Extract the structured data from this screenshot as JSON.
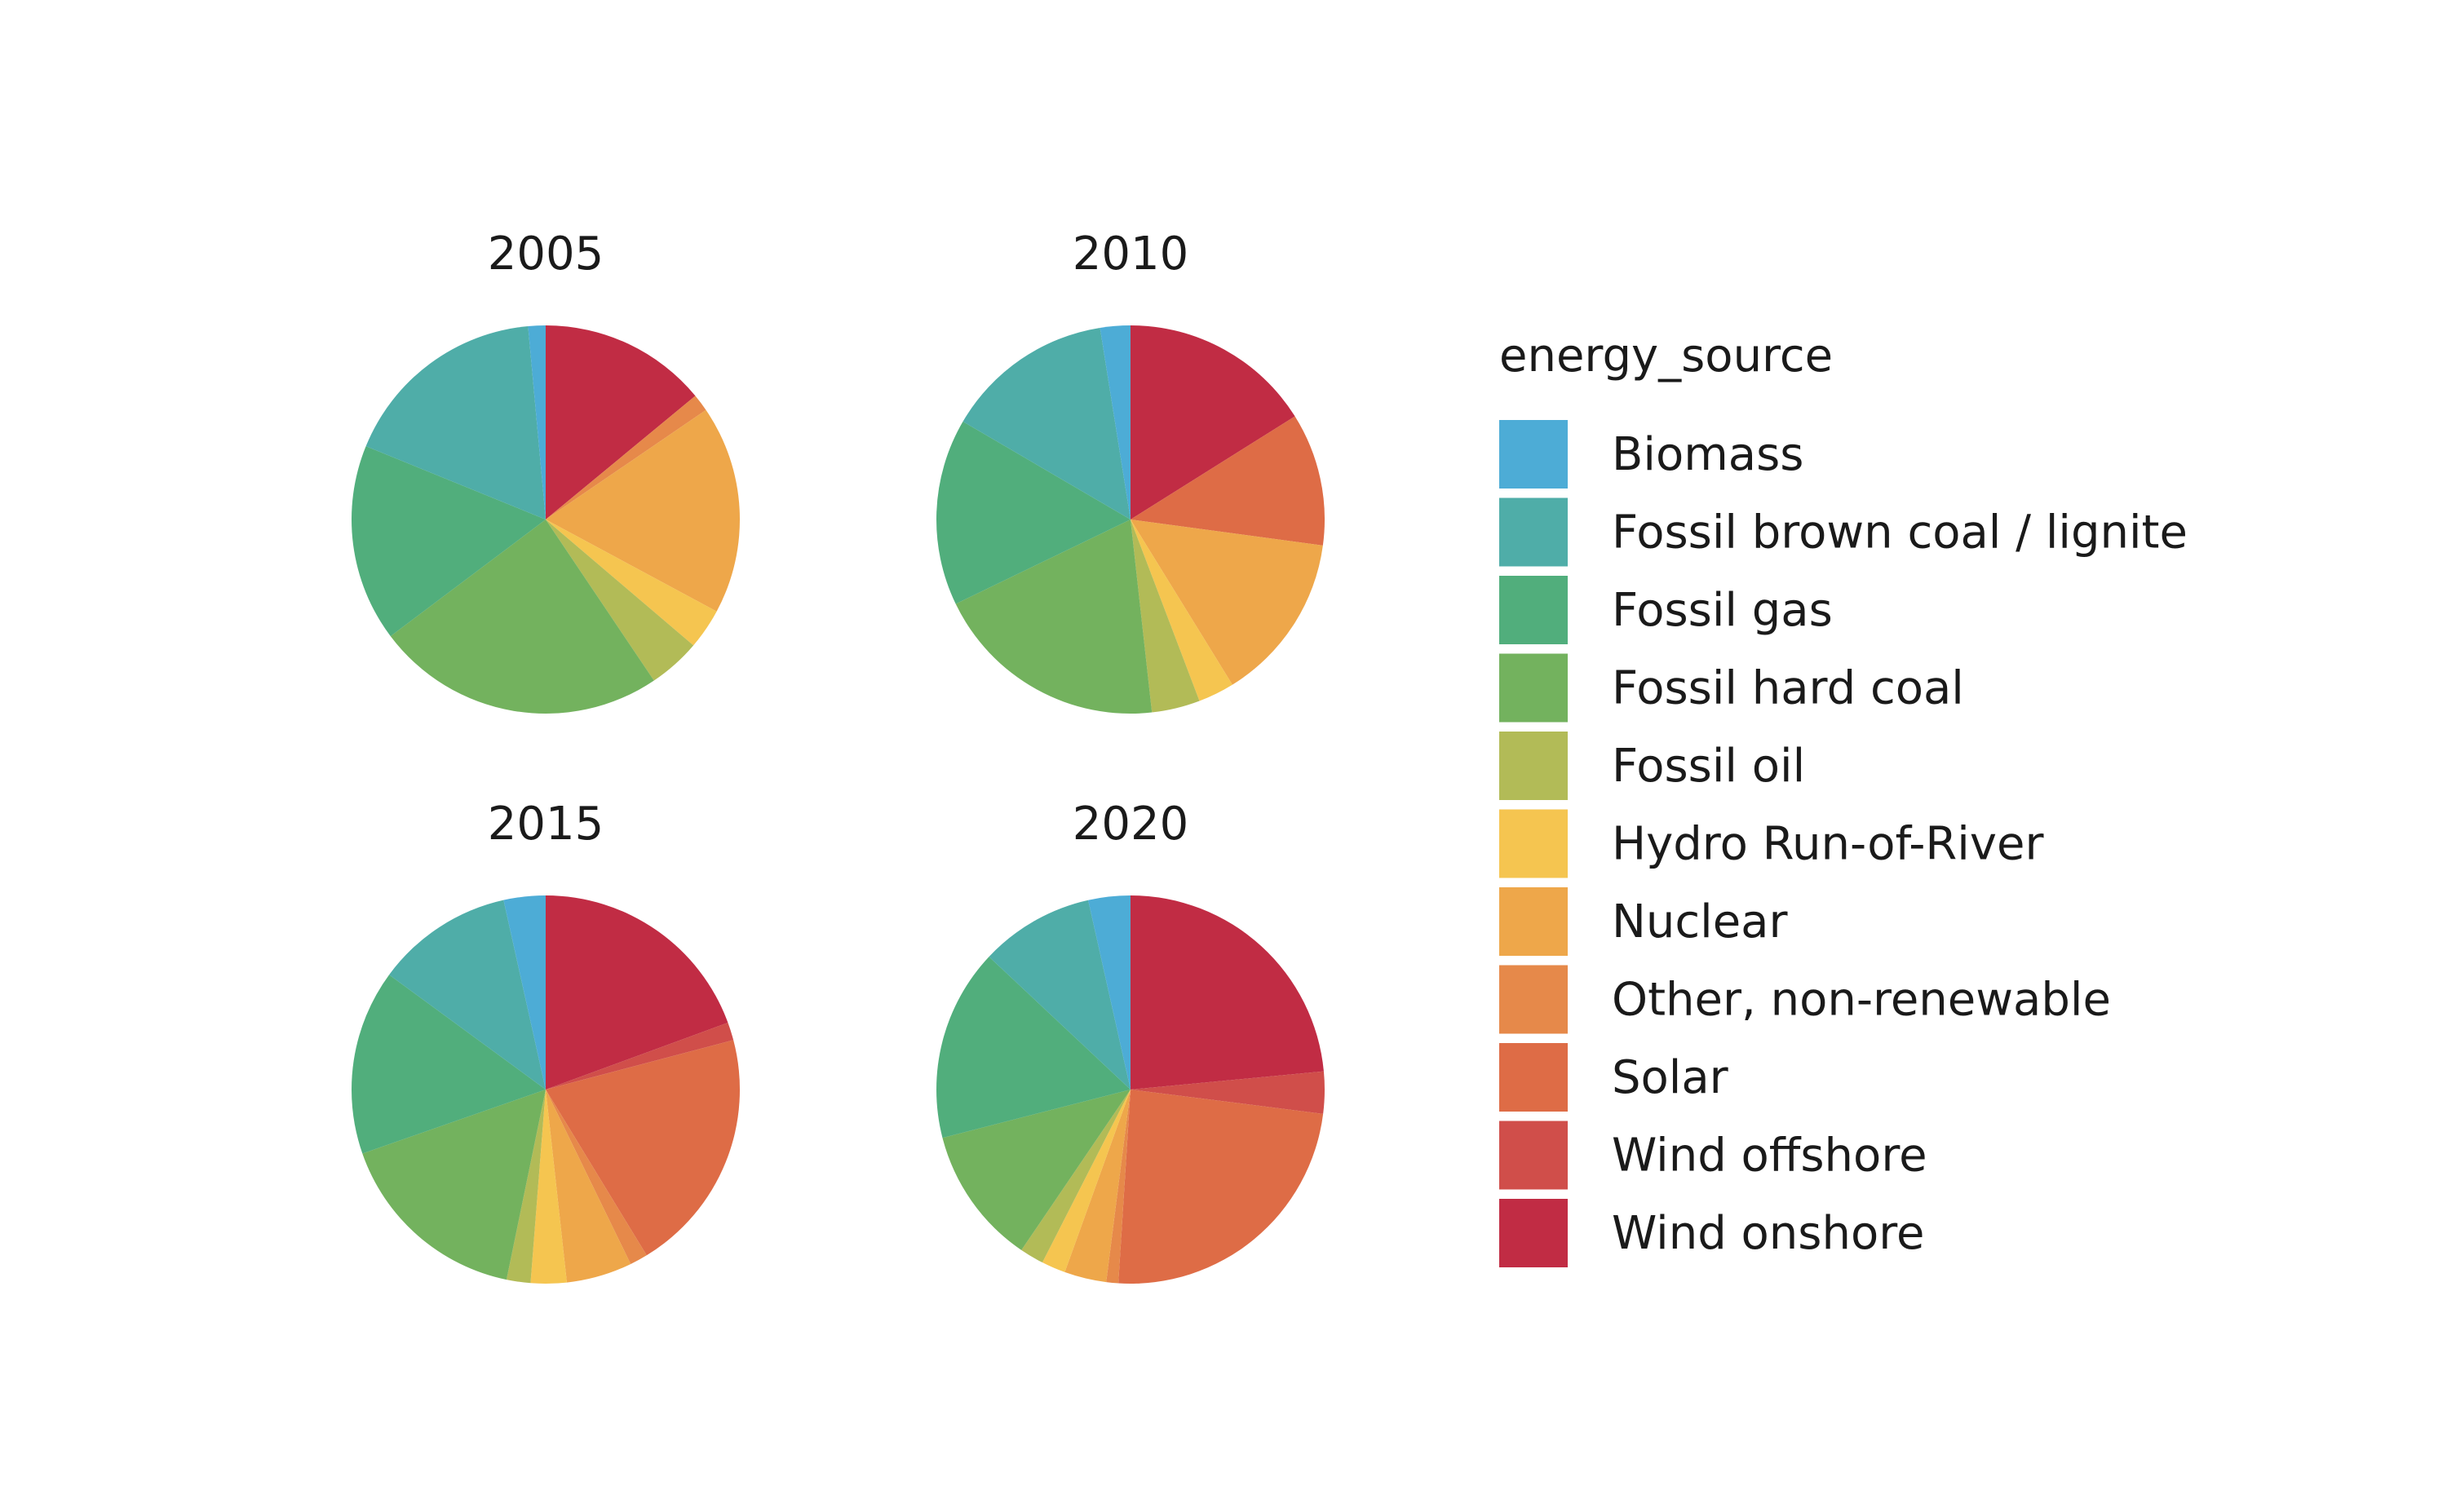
{
  "chart_data": {
    "type": "pie",
    "legend": {
      "title": "energy_source",
      "position": "right",
      "entries": [
        {
          "label": "Biomass",
          "color": "#4DACD6"
        },
        {
          "label": "Fossil brown coal / lignite",
          "color": "#4FADA8"
        },
        {
          "label": "Fossil gas",
          "color": "#51AE7C"
        },
        {
          "label": "Fossil hard coal",
          "color": "#73B25E"
        },
        {
          "label": "Fossil oil",
          "color": "#B2BB57"
        },
        {
          "label": "Hydro Run-of-River",
          "color": "#F5C550"
        },
        {
          "label": "Nuclear",
          "color": "#EEA74A"
        },
        {
          "label": "Other, non-renewable",
          "color": "#E6894A"
        },
        {
          "label": "Solar",
          "color": "#DE6C46"
        },
        {
          "label": "Wind offshore",
          "color": "#D04E4A"
        },
        {
          "label": "Wind onshore",
          "color": "#C12C44"
        }
      ]
    },
    "pies": [
      {
        "title": "2005",
        "values": [
          1.5,
          18.0,
          17.0,
          25.0,
          4.5,
          3.5,
          18.0,
          1.5,
          0.0,
          0.0,
          14.5
        ]
      },
      {
        "title": "2010",
        "values": [
          2.5,
          14.0,
          15.5,
          19.5,
          4.0,
          3.0,
          14.0,
          0.0,
          11.0,
          0.0,
          16.0
        ]
      },
      {
        "title": "2015",
        "values": [
          3.5,
          11.5,
          15.5,
          16.5,
          2.0,
          3.0,
          5.5,
          1.5,
          20.5,
          1.5,
          19.5
        ]
      },
      {
        "title": "2020",
        "values": [
          3.5,
          9.5,
          16.0,
          11.5,
          2.0,
          2.0,
          3.5,
          1.0,
          24.0,
          3.5,
          23.5
        ]
      }
    ]
  }
}
